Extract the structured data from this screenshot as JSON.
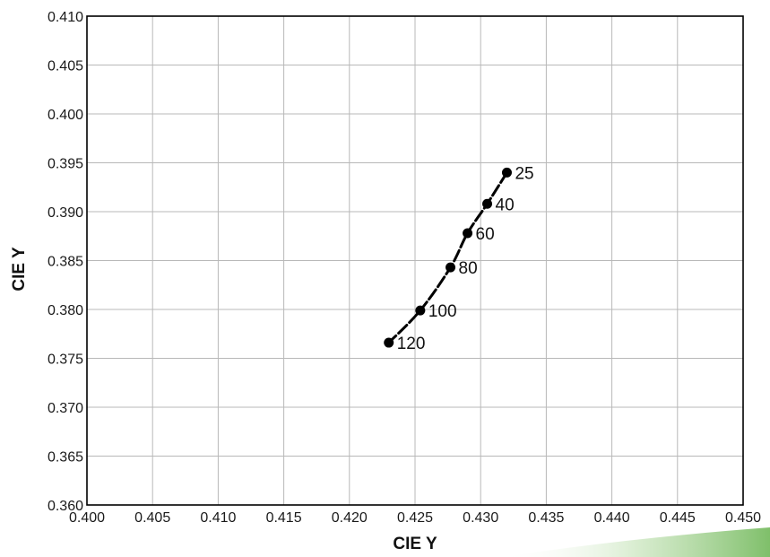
{
  "chart_data": {
    "type": "line",
    "xlabel": "CIE Y",
    "ylabel": "CIE Y",
    "xlim": [
      0.4,
      0.45
    ],
    "ylim": [
      0.36,
      0.41
    ],
    "x_ticks": [
      "0.400",
      "0.405",
      "0.410",
      "0.415",
      "0.420",
      "0.425",
      "0.430",
      "0.435",
      "0.440",
      "0.445",
      "0.450"
    ],
    "y_ticks": [
      "0.360",
      "0.365",
      "0.370",
      "0.375",
      "0.380",
      "0.385",
      "0.390",
      "0.395",
      "0.400",
      "0.405",
      "0.410"
    ],
    "grid": true,
    "series": [
      {
        "marker": "circle",
        "line_style": "dashed",
        "points": [
          {
            "x": 0.432,
            "y": 0.394,
            "label": "25"
          },
          {
            "x": 0.4305,
            "y": 0.3908,
            "label": "40"
          },
          {
            "x": 0.429,
            "y": 0.3878,
            "label": "60"
          },
          {
            "x": 0.4277,
            "y": 0.3843,
            "label": "80"
          },
          {
            "x": 0.4254,
            "y": 0.3799,
            "label": "100"
          },
          {
            "x": 0.423,
            "y": 0.3766,
            "label": "120"
          }
        ]
      }
    ]
  },
  "colors": {
    "line": "#000000",
    "grid": "#b8b8b8",
    "decoration": "#7fbf6a"
  }
}
